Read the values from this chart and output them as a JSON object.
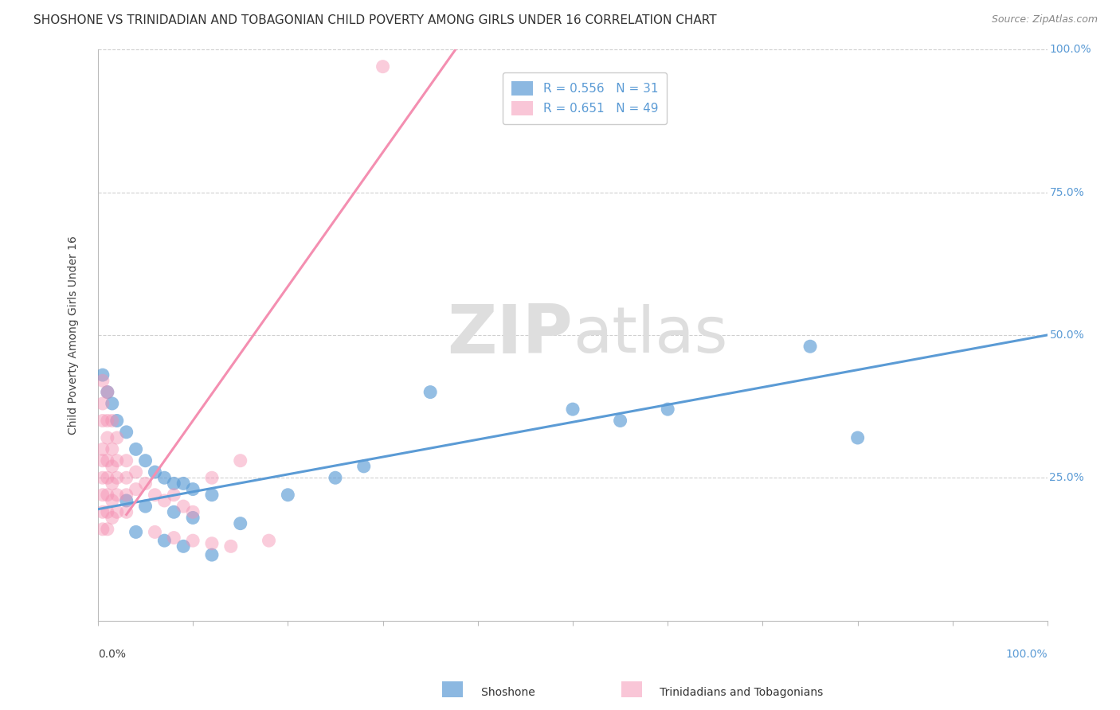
{
  "title": "SHOSHONE VS TRINIDADIAN AND TOBAGONIAN CHILD POVERTY AMONG GIRLS UNDER 16 CORRELATION CHART",
  "source": "Source: ZipAtlas.com",
  "ylabel": "Child Poverty Among Girls Under 16",
  "watermark": "ZIPatlas",
  "blue_color": "#5b9bd5",
  "pink_color": "#f48fb1",
  "grid_color": "#d0d0d0",
  "bg_color": "#ffffff",
  "blue_R": 0.556,
  "blue_N": 31,
  "pink_R": 0.651,
  "pink_N": 49,
  "blue_line_intercept": 0.195,
  "blue_line_slope": 0.305,
  "pink_line_intercept": 0.115,
  "pink_line_slope": 2.35,
  "blue_points": [
    [
      0.005,
      0.43
    ],
    [
      0.01,
      0.4
    ],
    [
      0.015,
      0.38
    ],
    [
      0.02,
      0.35
    ],
    [
      0.03,
      0.33
    ],
    [
      0.04,
      0.3
    ],
    [
      0.05,
      0.28
    ],
    [
      0.06,
      0.26
    ],
    [
      0.07,
      0.25
    ],
    [
      0.08,
      0.24
    ],
    [
      0.09,
      0.24
    ],
    [
      0.1,
      0.23
    ],
    [
      0.12,
      0.22
    ],
    [
      0.03,
      0.21
    ],
    [
      0.05,
      0.2
    ],
    [
      0.08,
      0.19
    ],
    [
      0.1,
      0.18
    ],
    [
      0.15,
      0.17
    ],
    [
      0.2,
      0.22
    ],
    [
      0.25,
      0.25
    ],
    [
      0.28,
      0.27
    ],
    [
      0.35,
      0.4
    ],
    [
      0.5,
      0.37
    ],
    [
      0.55,
      0.35
    ],
    [
      0.6,
      0.37
    ],
    [
      0.75,
      0.48
    ],
    [
      0.8,
      0.32
    ],
    [
      0.04,
      0.155
    ],
    [
      0.07,
      0.14
    ],
    [
      0.09,
      0.13
    ],
    [
      0.12,
      0.115
    ]
  ],
  "pink_points": [
    [
      0.005,
      0.42
    ],
    [
      0.005,
      0.38
    ],
    [
      0.005,
      0.35
    ],
    [
      0.005,
      0.3
    ],
    [
      0.005,
      0.28
    ],
    [
      0.005,
      0.25
    ],
    [
      0.005,
      0.22
    ],
    [
      0.005,
      0.19
    ],
    [
      0.005,
      0.16
    ],
    [
      0.01,
      0.4
    ],
    [
      0.01,
      0.35
    ],
    [
      0.01,
      0.32
    ],
    [
      0.01,
      0.28
    ],
    [
      0.01,
      0.25
    ],
    [
      0.01,
      0.22
    ],
    [
      0.01,
      0.19
    ],
    [
      0.01,
      0.16
    ],
    [
      0.015,
      0.35
    ],
    [
      0.015,
      0.3
    ],
    [
      0.015,
      0.27
    ],
    [
      0.015,
      0.24
    ],
    [
      0.015,
      0.21
    ],
    [
      0.015,
      0.18
    ],
    [
      0.02,
      0.32
    ],
    [
      0.02,
      0.28
    ],
    [
      0.02,
      0.25
    ],
    [
      0.02,
      0.22
    ],
    [
      0.02,
      0.19
    ],
    [
      0.03,
      0.28
    ],
    [
      0.03,
      0.25
    ],
    [
      0.03,
      0.22
    ],
    [
      0.03,
      0.19
    ],
    [
      0.04,
      0.26
    ],
    [
      0.04,
      0.23
    ],
    [
      0.05,
      0.24
    ],
    [
      0.06,
      0.22
    ],
    [
      0.07,
      0.21
    ],
    [
      0.08,
      0.22
    ],
    [
      0.09,
      0.2
    ],
    [
      0.1,
      0.19
    ],
    [
      0.12,
      0.25
    ],
    [
      0.15,
      0.28
    ],
    [
      0.06,
      0.155
    ],
    [
      0.08,
      0.145
    ],
    [
      0.1,
      0.14
    ],
    [
      0.12,
      0.135
    ],
    [
      0.14,
      0.13
    ],
    [
      0.18,
      0.14
    ],
    [
      0.3,
      0.97
    ]
  ]
}
